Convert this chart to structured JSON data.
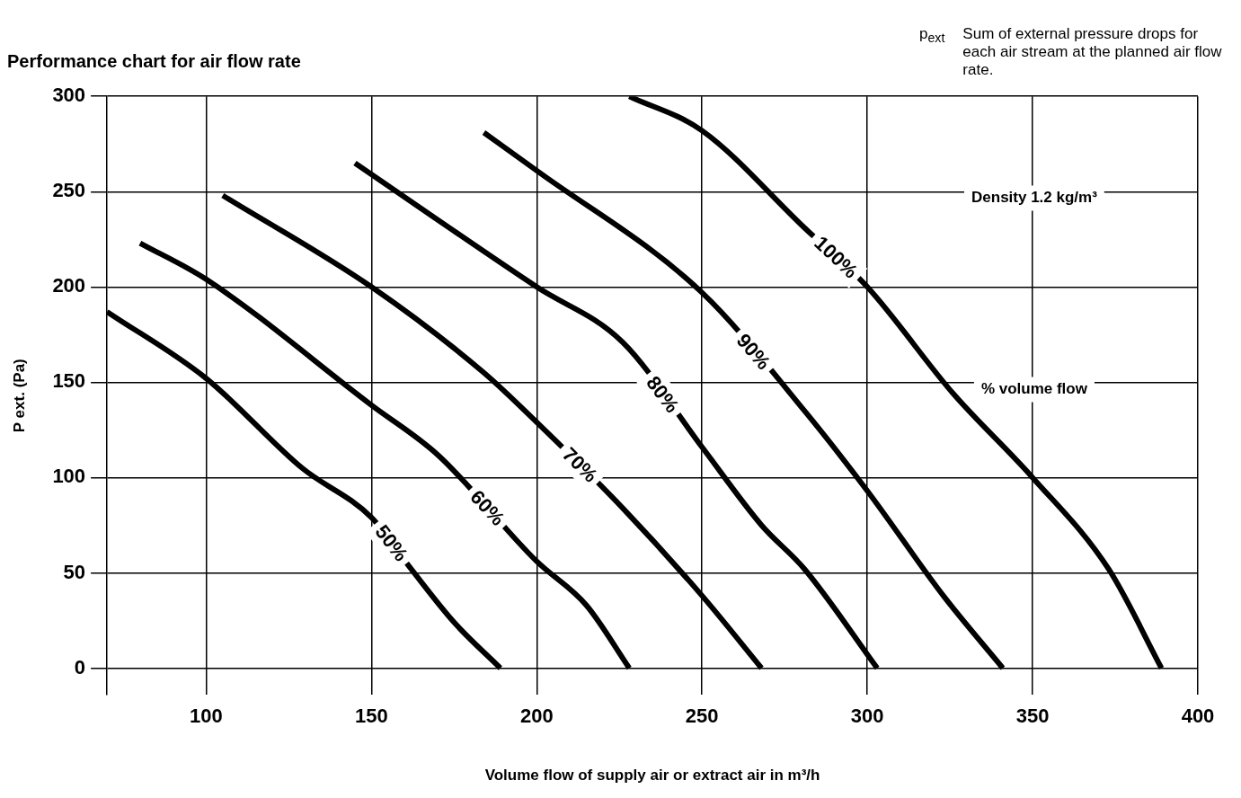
{
  "chart_data": {
    "type": "line",
    "title": "Performance chart for air flow rate",
    "xlabel": "Volume flow of supply air or extract air in m³/h",
    "ylabel": "P ext. (Pa)",
    "xlim": [
      70,
      400
    ],
    "xticks": [
      100,
      150,
      200,
      250,
      300,
      350,
      400
    ],
    "ylim": [
      -14,
      300
    ],
    "yticks": [
      0,
      50,
      100,
      150,
      200,
      250,
      300
    ],
    "grid": true,
    "legend": false,
    "marker": "none",
    "line_style": "solid",
    "annotations": [
      "Density 1.2 kg/m³",
      "% volume flow",
      "p$_{ext}$",
      "Sum of external pressure drops for each air stream at the planned air flow rate."
    ],
    "series": [
      {
        "name": "50%",
        "color": "#000000",
        "x": [
          70,
          100,
          129,
          150,
          162,
          175,
          189
        ],
        "values": [
          187,
          152,
          105,
          79,
          52,
          24,
          0
        ]
      },
      {
        "name": "60%",
        "color": "#000000",
        "x": [
          80,
          100,
          150,
          170,
          200,
          215,
          228
        ],
        "values": [
          223,
          204,
          138,
          112,
          56,
          33,
          0
        ]
      },
      {
        "name": "70%",
        "color": "#000000",
        "x": [
          105,
          150,
          184,
          200,
          226,
          250,
          268
        ],
        "values": [
          248,
          200,
          155,
          129,
          84,
          38,
          0
        ]
      },
      {
        "name": "80%",
        "color": "#000000",
        "x": [
          145,
          200,
          226,
          250,
          268,
          281,
          303
        ],
        "values": [
          265,
          200,
          171,
          116,
          75,
          52,
          0
        ]
      },
      {
        "name": "90%",
        "color": "#000000",
        "x": [
          184,
          200,
          250,
          281,
          300,
          323,
          341
        ],
        "values": [
          281,
          261,
          197,
          135,
          93,
          38,
          0
        ]
      },
      {
        "name": "100%",
        "color": "#000000",
        "x": [
          228,
          250,
          281,
          300,
          326,
          350,
          373,
          389
        ],
        "values": [
          300,
          282,
          231,
          200,
          144,
          100,
          52,
          0
        ]
      }
    ]
  }
}
